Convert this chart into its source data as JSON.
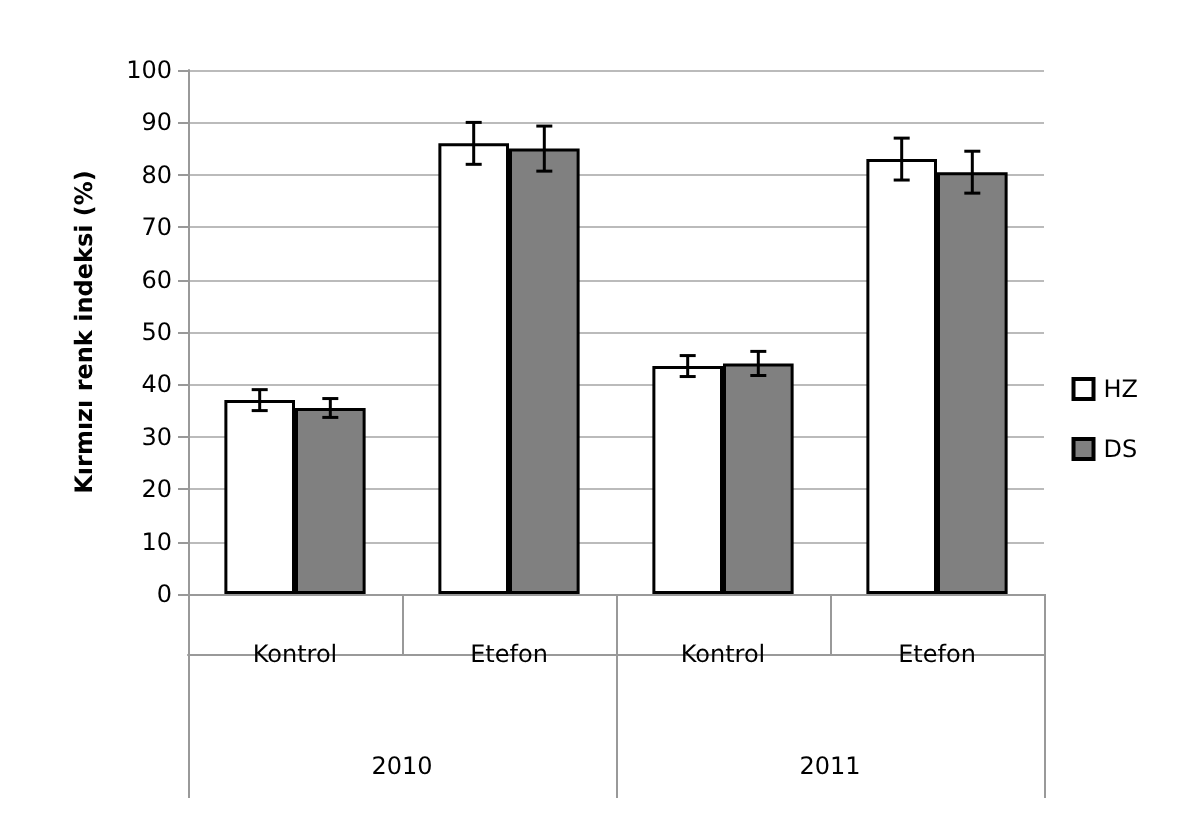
{
  "chart_data": {
    "type": "bar",
    "ylabel": "Kırmızı renk indeksi (%)",
    "categories": [
      "Kontrol",
      "Etefon",
      "Kontrol",
      "Etefon"
    ],
    "annotations": [
      "2010",
      "2011"
    ],
    "series": [
      {
        "name": "HZ",
        "color": "#ffffff",
        "values": [
          37,
          86,
          43.5,
          83
        ],
        "errors": [
          2,
          4,
          2,
          4
        ]
      },
      {
        "name": "DS",
        "color": "#808080",
        "values": [
          35.5,
          85,
          44,
          80.5
        ],
        "errors": [
          1.8,
          4.3,
          2.3,
          4
        ]
      }
    ],
    "ylim": [
      0,
      100
    ],
    "yticks": [
      0,
      10,
      20,
      30,
      40,
      50,
      60,
      70,
      80,
      90,
      100
    ],
    "grid": "y",
    "legend": "right"
  }
}
